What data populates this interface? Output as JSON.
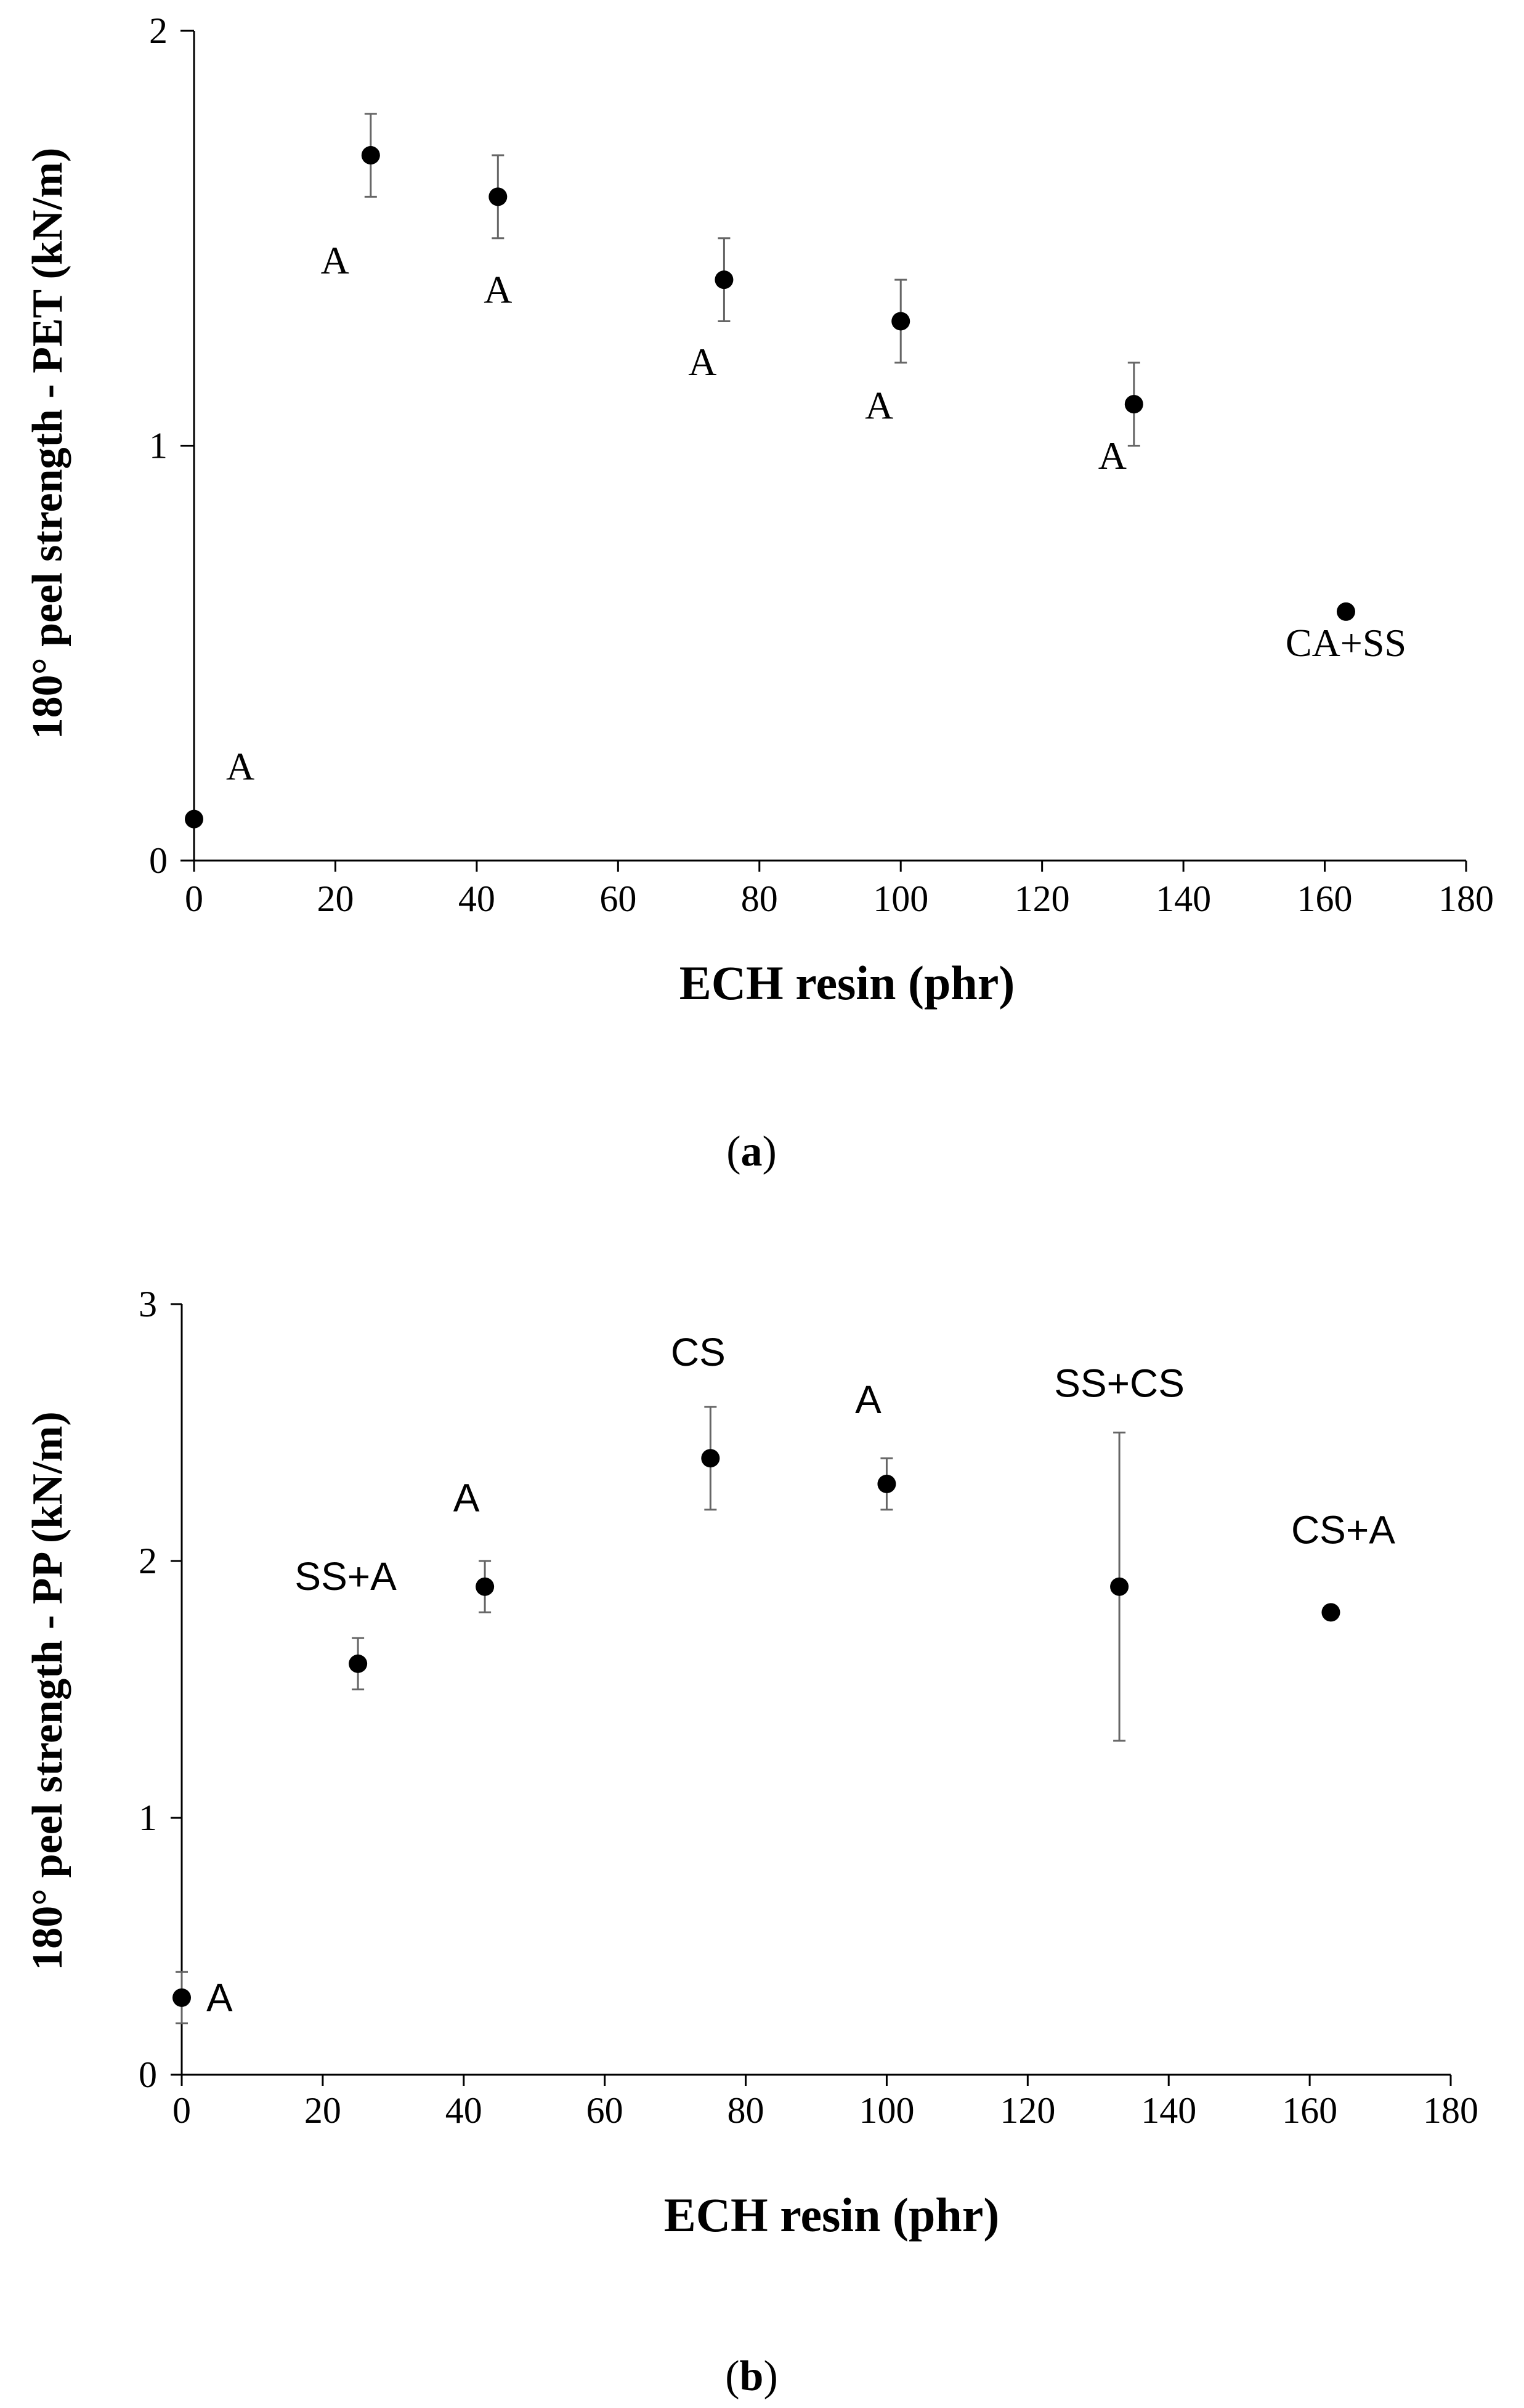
{
  "chart_data": [
    {
      "type": "scatter",
      "panel": "a",
      "caption_open": "(",
      "caption_letter": "a",
      "caption_close": ")",
      "xlabel": "ECH resin (phr)",
      "ylabel": "180° peel strength - PET (kN/m)",
      "xlim": [
        0,
        180
      ],
      "ylim": [
        0,
        2
      ],
      "xticks": [
        "0",
        "20",
        "40",
        "60",
        "80",
        "100",
        "120",
        "140",
        "160",
        "180"
      ],
      "yticks": [
        "0",
        "1",
        "2"
      ],
      "points": [
        {
          "x": 0,
          "y": 0.1,
          "err": 0,
          "label": "A"
        },
        {
          "x": 25,
          "y": 1.7,
          "err": 0.1,
          "label": "A"
        },
        {
          "x": 43,
          "y": 1.6,
          "err": 0.1,
          "label": "A"
        },
        {
          "x": 75,
          "y": 1.4,
          "err": 0.1,
          "label": "A"
        },
        {
          "x": 100,
          "y": 1.3,
          "err": 0.1,
          "label": "A"
        },
        {
          "x": 133,
          "y": 1.1,
          "err": 0.1,
          "label": "A"
        },
        {
          "x": 163,
          "y": 0.6,
          "err": 0,
          "label": "CA+SS"
        }
      ]
    },
    {
      "type": "scatter",
      "panel": "b",
      "caption_open": "(",
      "caption_letter": "b",
      "caption_close": ")",
      "xlabel": "ECH resin (phr)",
      "ylabel": "180° peel strength - PP (kN/m)",
      "xlim": [
        0,
        180
      ],
      "ylim": [
        0,
        3
      ],
      "xticks": [
        "0",
        "20",
        "40",
        "60",
        "80",
        "100",
        "120",
        "140",
        "160",
        "180"
      ],
      "yticks": [
        "0",
        "1",
        "2",
        "3"
      ],
      "points": [
        {
          "x": 0,
          "y": 0.3,
          "err": 0.1,
          "label": "A"
        },
        {
          "x": 25,
          "y": 1.6,
          "err": 0.1,
          "label": "SS+A"
        },
        {
          "x": 43,
          "y": 1.9,
          "err": 0.1,
          "label": "A"
        },
        {
          "x": 75,
          "y": 2.4,
          "err": 0.2,
          "label": "CS"
        },
        {
          "x": 100,
          "y": 2.3,
          "err": 0.1,
          "label": "A"
        },
        {
          "x": 133,
          "y": 1.9,
          "err": 0.6,
          "label": "SS+CS"
        },
        {
          "x": 163,
          "y": 1.8,
          "err": 0,
          "label": "CS+A"
        }
      ]
    }
  ]
}
